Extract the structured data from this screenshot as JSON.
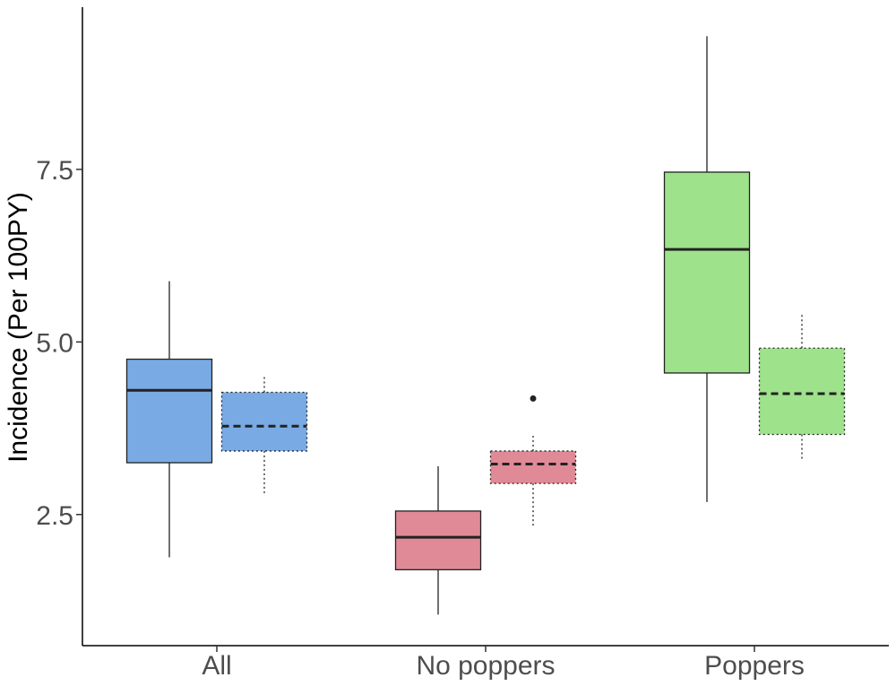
{
  "chart_data": {
    "type": "box",
    "title": "",
    "xlabel": "",
    "ylabel": "Incidence (Per 100PY)",
    "ylim": [
      0.6,
      9.85
    ],
    "yticks": [
      2.5,
      5.0,
      7.5
    ],
    "ytick_labels": [
      "2.5",
      "5.0",
      "7.5"
    ],
    "categories": [
      "All",
      "No poppers",
      "Poppers"
    ],
    "category_colors": [
      "#7aaae3",
      "#e08a98",
      "#9ee28c"
    ],
    "legend": "none",
    "grid": false,
    "series": [
      {
        "name": "solid",
        "line_style": "solid",
        "boxes": [
          {
            "category": "All",
            "whisker_low": 1.88,
            "q1": 3.25,
            "median": 4.3,
            "q3": 4.75,
            "whisker_high": 5.88,
            "outliers": []
          },
          {
            "category": "No poppers",
            "whisker_low": 1.05,
            "q1": 1.7,
            "median": 2.17,
            "q3": 2.55,
            "whisker_high": 3.2,
            "outliers": []
          },
          {
            "category": "Poppers",
            "whisker_low": 2.68,
            "q1": 4.55,
            "median": 6.34,
            "q3": 7.46,
            "whisker_high": 9.43,
            "outliers": []
          }
        ]
      },
      {
        "name": "dotted",
        "line_style": "dotted",
        "boxes": [
          {
            "category": "All",
            "whisker_low": 2.8,
            "q1": 3.42,
            "median": 3.78,
            "q3": 4.27,
            "whisker_high": 4.52,
            "outliers": []
          },
          {
            "category": "No poppers",
            "whisker_low": 2.33,
            "q1": 2.95,
            "median": 3.23,
            "q3": 3.42,
            "whisker_high": 3.64,
            "outliers": [
              4.18
            ]
          },
          {
            "category": "Poppers",
            "whisker_low": 3.27,
            "q1": 3.66,
            "median": 4.25,
            "q3": 4.91,
            "whisker_high": 5.4,
            "outliers": []
          }
        ]
      }
    ]
  }
}
